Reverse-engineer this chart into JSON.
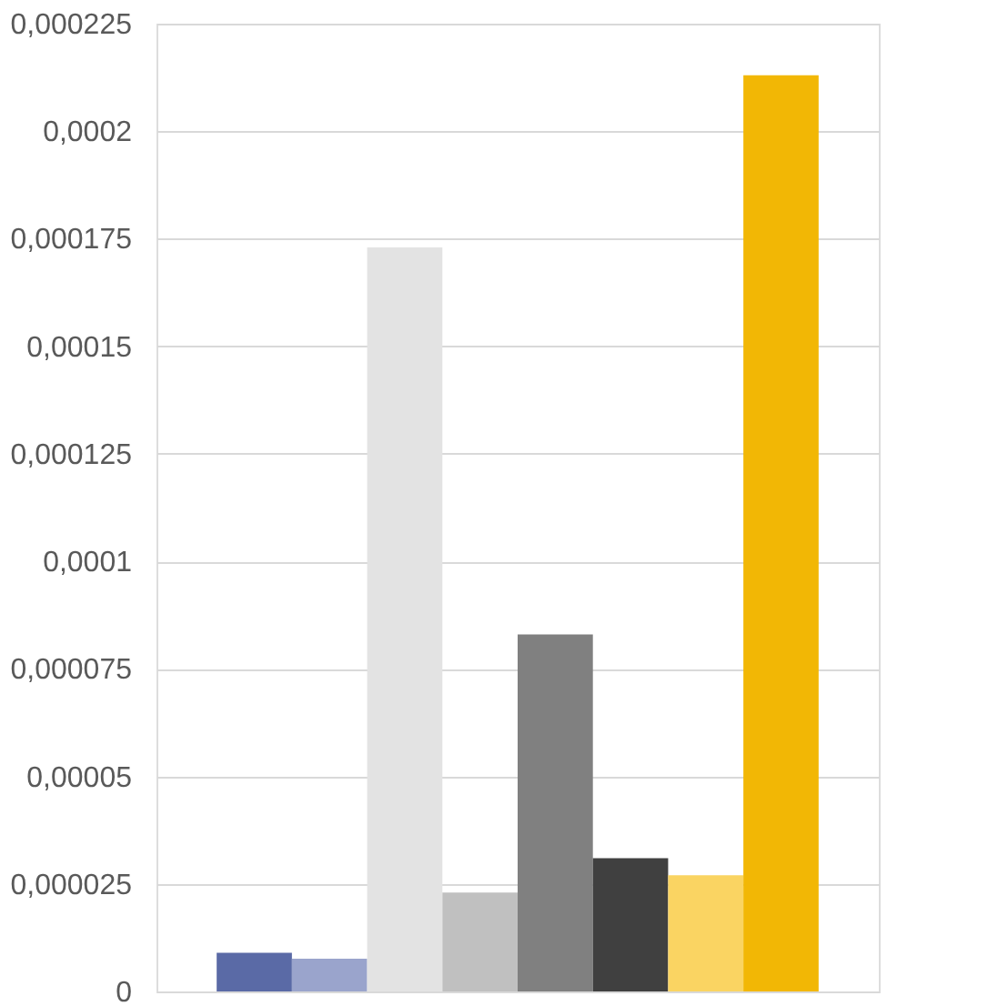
{
  "chart_data": {
    "type": "bar",
    "categories": [
      null,
      null,
      null,
      null,
      null,
      null,
      null,
      null
    ],
    "values": [
      9e-06,
      7.6e-06,
      0.000173,
      2.3e-05,
      8.3e-05,
      3.1e-05,
      2.7e-05,
      0.000213
    ],
    "colors": [
      "#5a6aa6",
      "#9aa4cc",
      "#e3e3e3",
      "#c0c0c0",
      "#808080",
      "#404040",
      "#fad462",
      "#f2b705"
    ],
    "ylim": [
      0,
      0.000225
    ],
    "yticks": [
      {
        "value": 0,
        "label": "0"
      },
      {
        "value": 2.5e-05,
        "label": "0,000025"
      },
      {
        "value": 5e-05,
        "label": "0,00005"
      },
      {
        "value": 7.5e-05,
        "label": "0,000075"
      },
      {
        "value": 0.0001,
        "label": "0,0001"
      },
      {
        "value": 0.000125,
        "label": "0,000125"
      },
      {
        "value": 0.00015,
        "label": "0,00015"
      },
      {
        "value": 0.000175,
        "label": "0,000175"
      },
      {
        "value": 0.0002,
        "label": "0,0002"
      },
      {
        "value": 0.000225,
        "label": "0,000225"
      }
    ],
    "grid": "y"
  }
}
